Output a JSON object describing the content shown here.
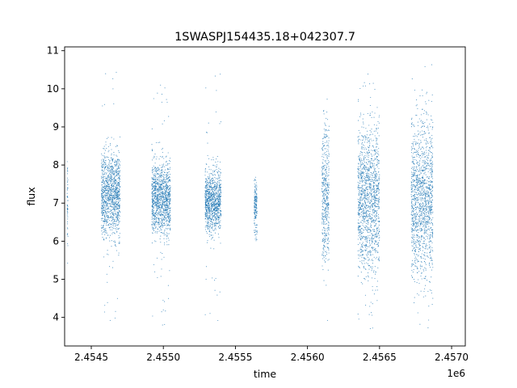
{
  "chart_data": {
    "type": "scatter",
    "title": "1SWASPJ154435.18+042307.7",
    "xlabel": "time",
    "ylabel": "flux",
    "x_offset_label": "1e6",
    "xlim": [
      2454315,
      2457095
    ],
    "ylim": [
      3.25,
      11.1
    ],
    "x_ticks": [
      2454500,
      2455000,
      2455500,
      2456000,
      2456500,
      2457000
    ],
    "x_tick_labels": [
      "2.4545",
      "2.4550",
      "2.4555",
      "2.4560",
      "2.4565",
      "2.4570"
    ],
    "y_ticks": [
      4,
      5,
      6,
      7,
      8,
      9,
      10,
      11
    ],
    "y_tick_labels": [
      "4",
      "5",
      "6",
      "7",
      "8",
      "9",
      "10",
      "11"
    ],
    "grid": false,
    "marker_color": "#1f77b4",
    "clusters": [
      {
        "x_start": 2454332,
        "x_end": 2454338,
        "center": 7.0,
        "spread": 0.6,
        "y_min": 3.9,
        "y_max": 8.1
      },
      {
        "x_start": 2454570,
        "x_end": 2454700,
        "center": 7.2,
        "spread": 0.55,
        "y_min": 3.9,
        "y_max": 10.6
      },
      {
        "x_start": 2454920,
        "x_end": 2455050,
        "center": 7.1,
        "spread": 0.45,
        "y_min": 3.7,
        "y_max": 10.3
      },
      {
        "x_start": 2455290,
        "x_end": 2455400,
        "center": 7.05,
        "spread": 0.4,
        "y_min": 3.6,
        "y_max": 10.4
      },
      {
        "x_start": 2455630,
        "x_end": 2455650,
        "center": 6.9,
        "spread": 0.35,
        "y_min": 6.0,
        "y_max": 7.8
      },
      {
        "x_start": 2456100,
        "x_end": 2456150,
        "center": 7.2,
        "spread": 0.9,
        "y_min": 3.8,
        "y_max": 10.6
      },
      {
        "x_start": 2456350,
        "x_end": 2456500,
        "center": 7.1,
        "spread": 0.9,
        "y_min": 3.6,
        "y_max": 10.6
      },
      {
        "x_start": 2456720,
        "x_end": 2456870,
        "center": 7.1,
        "spread": 1.0,
        "y_min": 3.6,
        "y_max": 10.65
      }
    ]
  }
}
